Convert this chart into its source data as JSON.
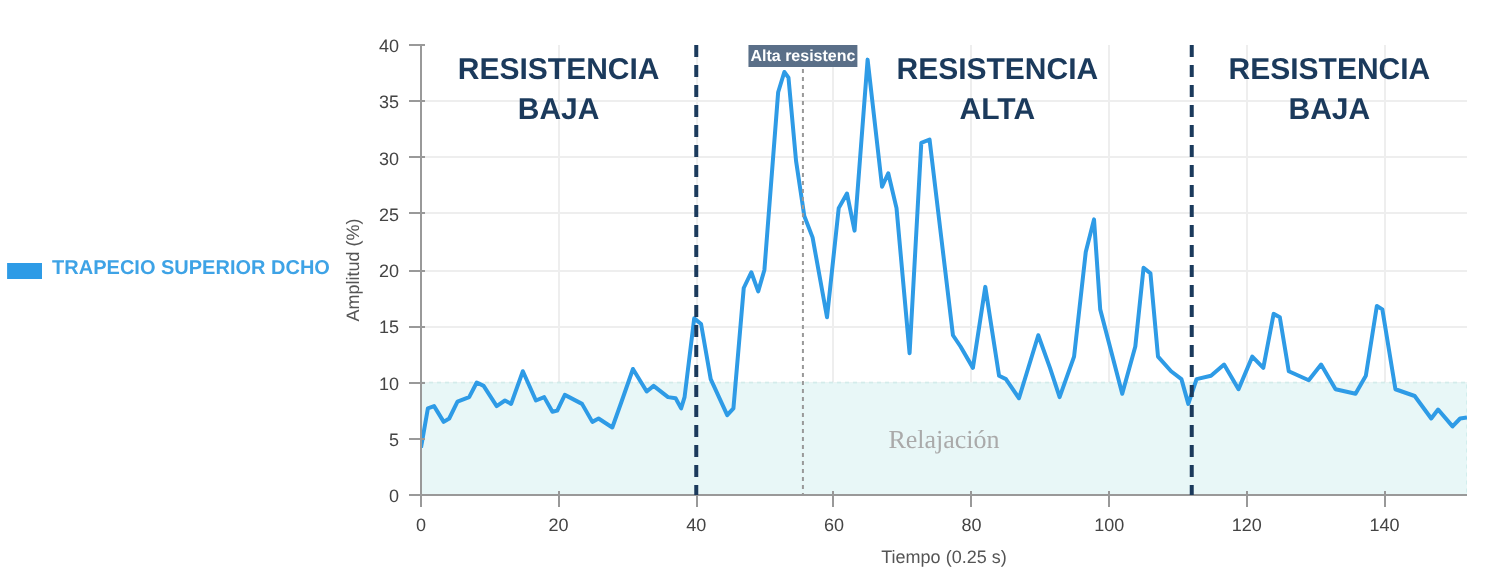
{
  "chart_data": {
    "type": "line",
    "xlabel": "Tiempo (0.25 s)",
    "ylabel": "Amplitud (%)",
    "xlim": [
      0,
      152
    ],
    "xticks": [
      0,
      20,
      40,
      60,
      80,
      100,
      120,
      140
    ],
    "ylim": [
      0,
      40
    ],
    "yticks": [
      0,
      5,
      10,
      15,
      20,
      25,
      30,
      35,
      40
    ],
    "grid": true,
    "legend": "left",
    "marker": "none",
    "line_style": "solid",
    "series": [
      {
        "name": "TRAPECIO SUPERIOR DCHO",
        "color": "#2e9be6",
        "x": [
          0,
          1,
          1.9,
          3.3,
          4.1,
          5.3,
          7,
          8.1,
          9.1,
          11,
          12.2,
          13.1,
          14.8,
          16.7,
          17.9,
          19.1,
          19.8,
          20.9,
          23.4,
          24.9,
          25.8,
          27.8,
          29.2,
          30.8,
          32.8,
          33.8,
          35.9,
          37,
          37.8,
          38.3,
          39.7,
          40.7,
          42.1,
          44.5,
          45.4,
          46.9,
          48,
          49,
          49.9,
          51.9,
          52.8,
          53.4,
          54.5,
          55.7,
          56.9,
          59,
          60.7,
          61.9,
          63,
          64.9,
          67,
          67.9,
          69.1,
          71,
          72.7,
          73.9,
          75.6,
          77.3,
          78.4,
          80.2,
          82,
          84,
          85,
          86.9,
          89.7,
          91.4,
          92.8,
          94.9,
          96.6,
          97.8,
          98.7,
          101.9,
          103.8,
          105,
          106,
          107.1,
          109,
          110.5,
          111.5,
          112.7,
          114.8,
          116.7,
          118.8,
          120.8,
          122.4,
          123.9,
          124.8,
          126.1,
          129,
          130.8,
          132.9,
          135.8,
          137.3,
          138.9,
          139.7,
          141.6,
          144.4,
          146.8,
          147.8,
          149.9,
          151,
          152
        ],
        "values": [
          4.2,
          7.7,
          7.9,
          6.5,
          6.8,
          8.3,
          8.7,
          10,
          9.7,
          7.9,
          8.4,
          8.1,
          11,
          8.4,
          8.7,
          7.4,
          7.5,
          8.9,
          8.1,
          6.5,
          6.8,
          6,
          8.4,
          11.2,
          9.2,
          9.7,
          8.7,
          8.6,
          7.7,
          8.7,
          15.7,
          15.2,
          10.3,
          7.1,
          7.7,
          18.4,
          19.8,
          18.1,
          20,
          35.8,
          37.6,
          37.1,
          29.7,
          24.8,
          22.9,
          15.8,
          25.5,
          26.8,
          23.5,
          38.7,
          27.4,
          28.6,
          25.5,
          12.6,
          31.3,
          31.6,
          22.9,
          14.2,
          13.2,
          11.3,
          18.5,
          10.6,
          10.3,
          8.6,
          14.2,
          11.3,
          8.7,
          12.3,
          21.6,
          24.5,
          16.5,
          9,
          13.2,
          20.2,
          19.7,
          12.3,
          11,
          10.3,
          8.1,
          10.3,
          10.6,
          11.6,
          9.4,
          12.3,
          11.3,
          16.1,
          15.8,
          11,
          10.2,
          11.6,
          9.4,
          9,
          10.6,
          16.8,
          16.5,
          9.4,
          8.8,
          6.8,
          7.6,
          6.1,
          6.8,
          6.9
        ]
      }
    ],
    "ref_lines": [
      {
        "axis": "x",
        "value": 40,
        "label": null,
        "color": "#1b3a5c",
        "line_style": "dashed"
      },
      {
        "axis": "x",
        "value": 55.5,
        "label": "Alta resistenc",
        "color": "#999999",
        "line_style": "dotted"
      },
      {
        "axis": "x",
        "value": 112,
        "label": null,
        "color": "#1b3a5c",
        "line_style": "dashed"
      }
    ],
    "bands": [
      {
        "axis": "y",
        "from": 0,
        "to": 10,
        "label": "Relajación",
        "color": "#e8f7f7"
      }
    ],
    "annotations": [
      "RESISTENCIA BAJA",
      "RESISTENCIA ALTA",
      "RESISTENCIA BAJA"
    ]
  }
}
